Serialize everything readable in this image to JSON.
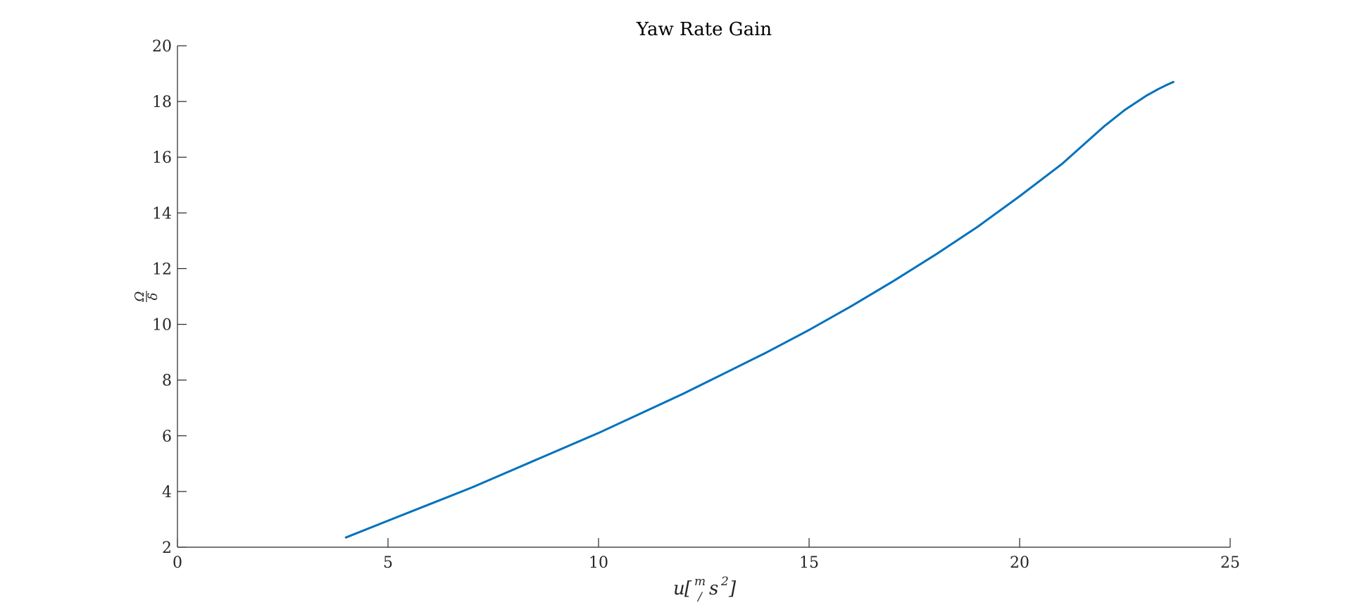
{
  "chart_data": {
    "type": "line",
    "title": "Yaw Rate Gain",
    "xlabel": {
      "var": "u",
      "open": "[",
      "num": "m",
      "den": "/",
      "unit": "s",
      "exp": "2",
      "close": "]"
    },
    "ylabel": {
      "num": "Ω",
      "den": "δ"
    },
    "xlim": [
      0,
      25
    ],
    "ylim": [
      2,
      20
    ],
    "xticks": [
      0,
      5,
      10,
      15,
      20,
      25
    ],
    "yticks": [
      2,
      4,
      6,
      8,
      10,
      12,
      14,
      16,
      18,
      20
    ],
    "grid": false,
    "series": [
      {
        "color": "#0072BD",
        "x": [
          4.0,
          5.0,
          6.0,
          7.0,
          8.0,
          9.0,
          10.0,
          11.0,
          12.0,
          13.0,
          14.0,
          15.0,
          16.0,
          17.0,
          18.0,
          19.0,
          20.0,
          21.0,
          22.0,
          22.5,
          23.0,
          23.3,
          23.5,
          23.65
        ],
        "y": [
          2.35,
          2.95,
          3.55,
          4.15,
          4.8,
          5.45,
          6.1,
          6.8,
          7.5,
          8.25,
          9.0,
          9.8,
          10.65,
          11.55,
          12.5,
          13.5,
          14.6,
          15.75,
          17.1,
          17.7,
          18.2,
          18.45,
          18.6,
          18.7
        ]
      }
    ]
  }
}
